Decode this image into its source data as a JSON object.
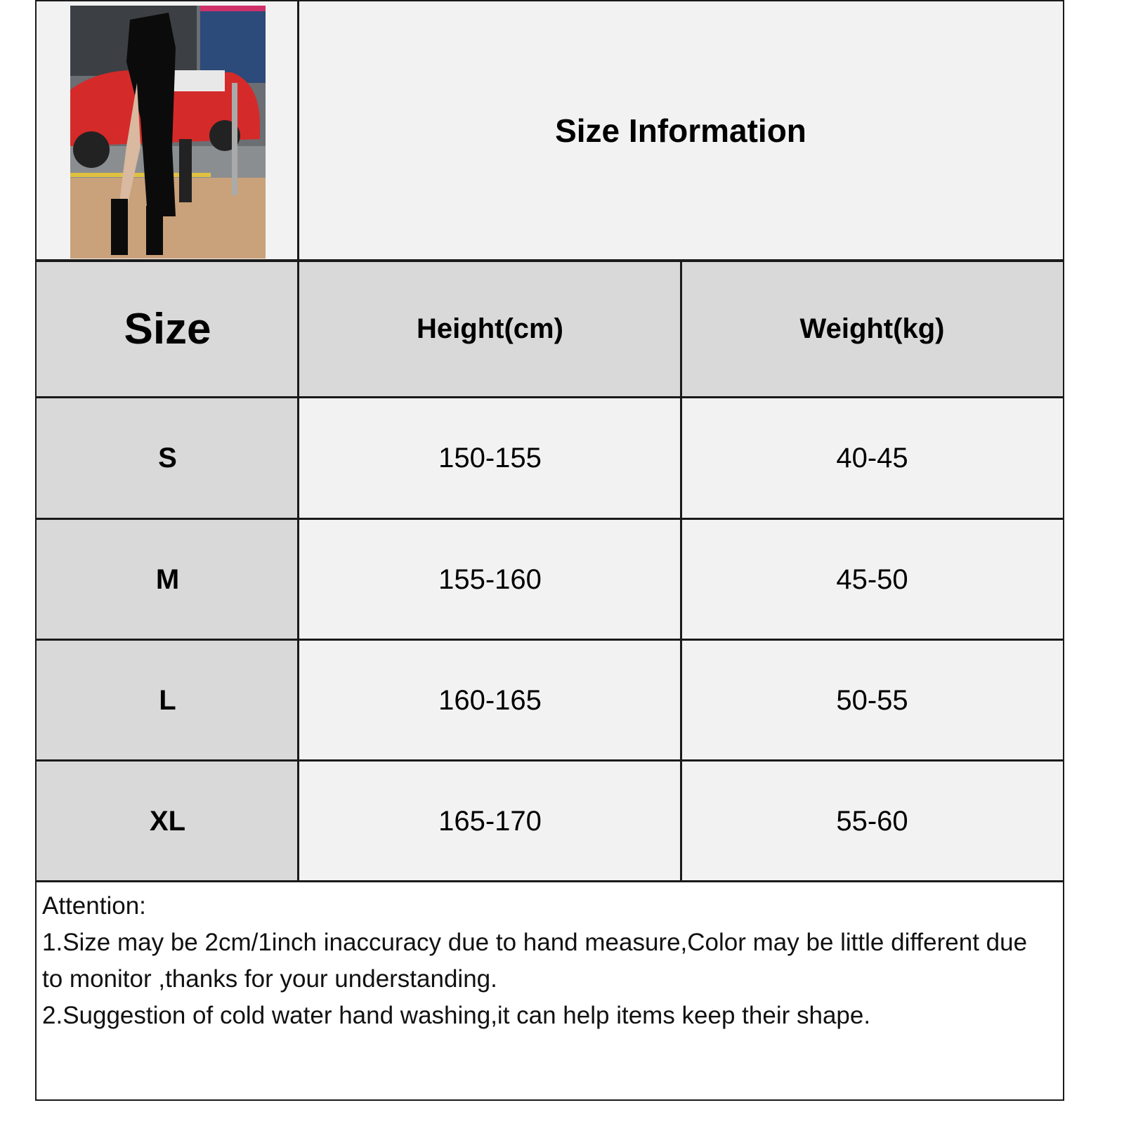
{
  "title": "Size Information",
  "photo": {
    "alt": "model wearing black one-shoulder slit midi dress"
  },
  "table": {
    "headers": [
      "Size",
      "Height(cm)",
      "Weight(kg)"
    ],
    "rows": [
      {
        "size": "S",
        "height": "150-155",
        "weight": "40-45"
      },
      {
        "size": "M",
        "height": "155-160",
        "weight": "45-50"
      },
      {
        "size": "L",
        "height": "160-165",
        "weight": "50-55"
      },
      {
        "size": "XL",
        "height": "165-170",
        "weight": "55-60"
      }
    ]
  },
  "notes": {
    "heading": "Attention:",
    "lines": [
      "1.Size may be 2cm/1inch inaccuracy due to hand measure,Color may be little different due to monitor ,thanks for your understanding.",
      "2.Suggestion of cold water hand washing,it can help items keep their shape."
    ]
  },
  "colors": {
    "cell": "#f2f2f2",
    "header": "#d9d9d9",
    "border": "#1a1a1a"
  }
}
